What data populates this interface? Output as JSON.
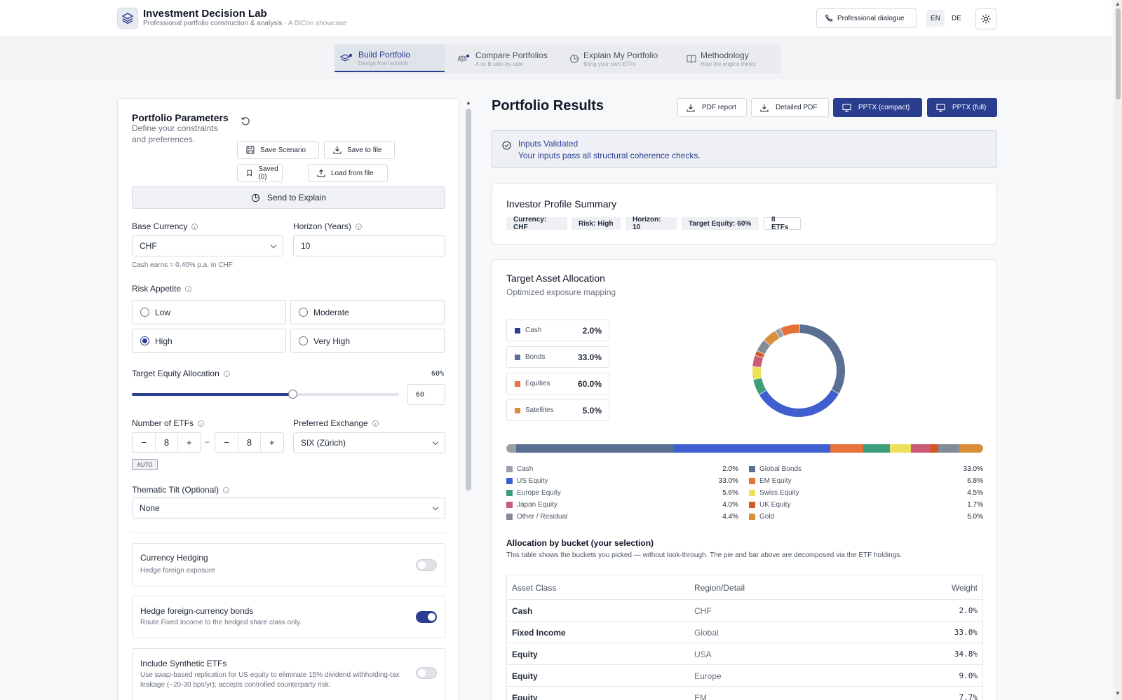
{
  "header": {
    "title": "Investment Decision Lab",
    "subtitle": "Professional portfolio construction & analysis",
    "showcase": "· A BICon showcase",
    "dialogue_label": "Professional dialogue",
    "lang_en": "EN",
    "lang_de": "DE",
    "active_lang": "EN"
  },
  "tabs": [
    {
      "label": "Build Portfolio",
      "sub": "Design from scratch",
      "icon": "layers-icon",
      "active": true
    },
    {
      "label": "Compare Portfolios",
      "sub": "A vs B side-by-side",
      "icon": "scale-icon",
      "active": false
    },
    {
      "label": "Explain My Portfolio",
      "sub": "Bring your own ETFs",
      "icon": "pie-icon",
      "active": false
    },
    {
      "label": "Methodology",
      "sub": "How the engine thinks",
      "icon": "book-icon",
      "active": false
    }
  ],
  "params": {
    "title": "Portfolio Parameters",
    "desc": "Define your constraints and preferences.",
    "save_scenario": "Save Scenario",
    "save_file": "Save to file",
    "saved": "Saved (0)",
    "load_file": "Load from file",
    "send_explain": "Send to Explain",
    "base_currency_label": "Base Currency",
    "base_currency": "CHF",
    "cash_hint": "Cash earns ≈ 0.40% p.a. in CHF",
    "horizon_label": "Horizon (Years)",
    "horizon": "10",
    "risk_label": "Risk Appetite",
    "risk_options": [
      "Low",
      "Moderate",
      "High",
      "Very High"
    ],
    "risk_selected": "High",
    "equity_label": "Target Equity Allocation",
    "equity_pct_label": "60%",
    "equity_value": "60",
    "equity_fraction": 0.6,
    "etf_count_label": "Number of ETFs",
    "etf_min": "8",
    "etf_max": "8",
    "range_sep": "–",
    "auto_badge": "AUTO",
    "exchange_label": "Preferred Exchange",
    "exchange": "SIX (Zürich)",
    "thematic_label": "Thematic Tilt (Optional)",
    "thematic": "None",
    "toggles": [
      {
        "title": "Currency Hedging",
        "sub": "Hedge foreign exposure",
        "on": false
      },
      {
        "title": "Hedge foreign-currency bonds",
        "sub": "Route Fixed Income to the hedged share class only.",
        "on": true
      },
      {
        "title": "Include Synthetic ETFs",
        "sub": "Use swap-based replication for US equity to eliminate 15% dividend withholding-tax leakage (~20-30 bps/yr); accepts controlled counterparty risk.",
        "on": false
      }
    ]
  },
  "results": {
    "title": "Portfolio Results",
    "pdf": "PDF report",
    "detailed_pdf": "Detailed PDF",
    "pptx_compact": "PPTX (compact)",
    "pptx_full": "PPTX (full)",
    "validated_title": "Inputs Validated",
    "validated_msg": "Your inputs pass all structural coherence checks.",
    "profile_title": "Investor Profile Summary",
    "chips": [
      "Currency: CHF",
      "Risk: High",
      "Horizon: 10",
      "Target Equity: 60%",
      "8 ETFs"
    ],
    "alloc_title": "Target Asset Allocation",
    "alloc_sub": "Optimized exposure mapping",
    "buckets": [
      {
        "label": "Cash",
        "value": "2.0%",
        "color": "#2b3d8f"
      },
      {
        "label": "Bonds",
        "value": "33.0%",
        "color": "#5a6f91"
      },
      {
        "label": "Equities",
        "value": "60.0%",
        "color": "#e5733a"
      },
      {
        "label": "Satellites",
        "value": "5.0%",
        "color": "#d98e3a"
      }
    ],
    "legend": [
      {
        "label": "Cash",
        "value": "2.0%",
        "pct": 2.0,
        "color": "#9aa0a8"
      },
      {
        "label": "Global Bonds",
        "value": "33.0%",
        "pct": 33.0,
        "color": "#5a6f91"
      },
      {
        "label": "US Equity",
        "value": "33.0%",
        "pct": 33.0,
        "color": "#3f5fd0"
      },
      {
        "label": "EM Equity",
        "value": "6.8%",
        "pct": 6.8,
        "color": "#e5733a"
      },
      {
        "label": "Europe Equity",
        "value": "5.6%",
        "pct": 5.6,
        "color": "#3e9e7a"
      },
      {
        "label": "Swiss Equity",
        "value": "4.5%",
        "pct": 4.5,
        "color": "#ede05a"
      },
      {
        "label": "Japan Equity",
        "value": "4.0%",
        "pct": 4.0,
        "color": "#c95a78"
      },
      {
        "label": "UK Equity",
        "value": "1.7%",
        "pct": 1.7,
        "color": "#d4582a"
      },
      {
        "label": "Other / Residual",
        "value": "4.4%",
        "pct": 4.4,
        "color": "#848a96"
      },
      {
        "label": "Gold",
        "value": "5.0%",
        "pct": 5.0,
        "color": "#d98e3a"
      }
    ],
    "bucket_table_title": "Allocation by bucket (your selection)",
    "bucket_table_desc": "This table shows the buckets you picked — without look-through. The pie and bar above are decomposed via the ETF holdings.",
    "table_headers": [
      "Asset Class",
      "Region/Detail",
      "Weight"
    ],
    "table_rows": [
      [
        "Cash",
        "CHF",
        "2.0%"
      ],
      [
        "Fixed Income",
        "Global",
        "33.0%"
      ],
      [
        "Equity",
        "USA",
        "34.8%"
      ],
      [
        "Equity",
        "Europe",
        "9.0%"
      ],
      [
        "Equity",
        "EM",
        "7.7%"
      ]
    ]
  }
}
